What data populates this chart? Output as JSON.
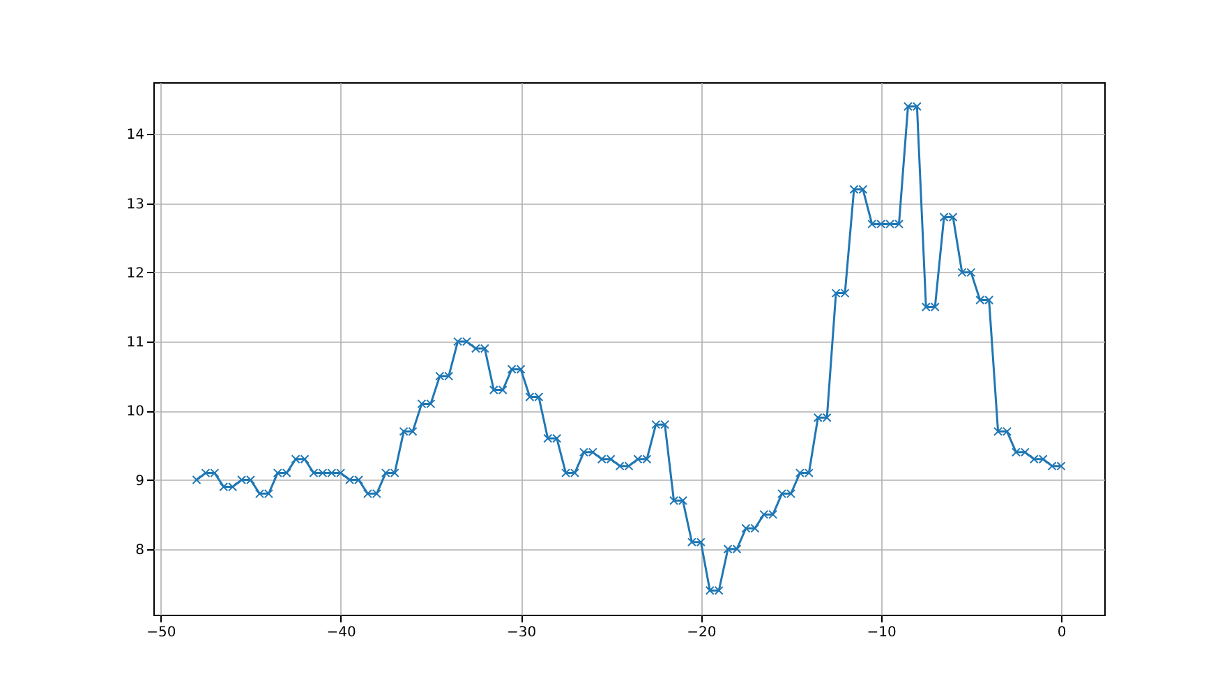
{
  "chart_data": {
    "type": "line",
    "x": [
      -48,
      -47.5,
      -47,
      -46.5,
      -46,
      -45.5,
      -45,
      -44.5,
      -44,
      -43.5,
      -43,
      -42.5,
      -42,
      -41.5,
      -41,
      -40.5,
      -40,
      -39.5,
      -39,
      -38.5,
      -38,
      -37.5,
      -37,
      -36.5,
      -36,
      -35.5,
      -35,
      -34.5,
      -34,
      -33.5,
      -33,
      -32.5,
      -32,
      -31.5,
      -31,
      -30.5,
      -30,
      -29.5,
      -29,
      -28.5,
      -28,
      -27.5,
      -27,
      -26.5,
      -26,
      -25.5,
      -25,
      -24.5,
      -24,
      -23.5,
      -23,
      -22.5,
      -22,
      -21.5,
      -21,
      -20.5,
      -20,
      -19.5,
      -19,
      -18.5,
      -18,
      -17.5,
      -17,
      -16.5,
      -16,
      -15.5,
      -15,
      -14.5,
      -14,
      -13.5,
      -13,
      -12.5,
      -12,
      -11.5,
      -11,
      -10.5,
      -10,
      -9.5,
      -9,
      -8.5,
      -8,
      -7.5,
      -7,
      -6.5,
      -6,
      -5.5,
      -5,
      -4.5,
      -4,
      -3.5,
      -3,
      -2.5,
      -2,
      -1.5,
      -1,
      -0.5,
      0
    ],
    "series": [
      {
        "color": "#1f77b4",
        "values": [
          9.0,
          9.1,
          9.1,
          8.9,
          8.9,
          9.0,
          9.0,
          8.8,
          8.8,
          9.1,
          9.1,
          9.3,
          9.3,
          9.1,
          9.1,
          9.1,
          9.1,
          9.0,
          9.0,
          8.8,
          8.8,
          9.1,
          9.1,
          9.7,
          9.7,
          10.1,
          10.1,
          10.5,
          10.5,
          11.0,
          11.0,
          10.9,
          10.9,
          10.3,
          10.3,
          10.6,
          10.6,
          10.2,
          10.2,
          9.6,
          9.6,
          9.1,
          9.1,
          9.4,
          9.4,
          9.3,
          9.3,
          9.2,
          9.2,
          9.3,
          9.3,
          9.8,
          9.8,
          8.7,
          8.7,
          8.1,
          8.1,
          7.4,
          7.4,
          8.0,
          8.0,
          8.3,
          8.3,
          8.5,
          8.5,
          8.8,
          8.8,
          9.1,
          9.1,
          9.9,
          9.9,
          11.7,
          11.7,
          13.2,
          13.2,
          12.7,
          12.7,
          12.7,
          12.7,
          14.4,
          14.4,
          11.5,
          11.5,
          12.8,
          12.8,
          12.0,
          12.0,
          11.6,
          11.6,
          9.7,
          9.7,
          9.4,
          9.4,
          9.3,
          9.3,
          9.2,
          9.2
        ]
      }
    ],
    "xlim": [
      -50.4,
      2.4
    ],
    "ylim": [
      7.05,
      14.75
    ],
    "xticks": [
      -50,
      -40,
      -30,
      -20,
      -10,
      0
    ],
    "yticks": [
      8,
      9,
      10,
      11,
      12,
      13,
      14
    ],
    "grid": true,
    "marker": "cross",
    "line_style": "solid"
  }
}
